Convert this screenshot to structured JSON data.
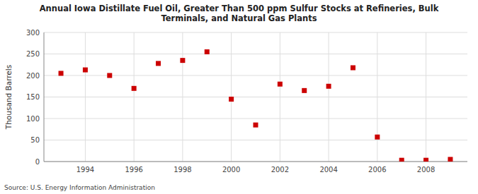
{
  "chart_data": {
    "type": "scatter",
    "title": "Annual Iowa Distillate Fuel Oil, Greater Than 500 ppm Sulfur Stocks at Refineries, Bulk\nTerminals, and Natural Gas Plants",
    "y_label": "Thousand Barrels",
    "source": "Source: U.S. Energy Information Administration",
    "x": [
      1993,
      1994,
      1995,
      1996,
      1997,
      1998,
      1999,
      2000,
      2001,
      2002,
      2003,
      2004,
      2005,
      2006,
      2007,
      2008,
      2009
    ],
    "values": [
      205,
      213,
      200,
      170,
      228,
      235,
      255,
      145,
      85,
      180,
      165,
      175,
      218,
      57,
      3,
      3,
      5
    ],
    "color": "#cc0000",
    "marker": "square",
    "grid": true,
    "xlim": [
      1992.3,
      2009.7
    ],
    "xticks": [
      1994,
      1996,
      1998,
      2000,
      2002,
      2004,
      2006,
      2008
    ],
    "ylim": [
      0,
      300
    ],
    "yticks": [
      0,
      50,
      100,
      150,
      200,
      250,
      300
    ]
  }
}
